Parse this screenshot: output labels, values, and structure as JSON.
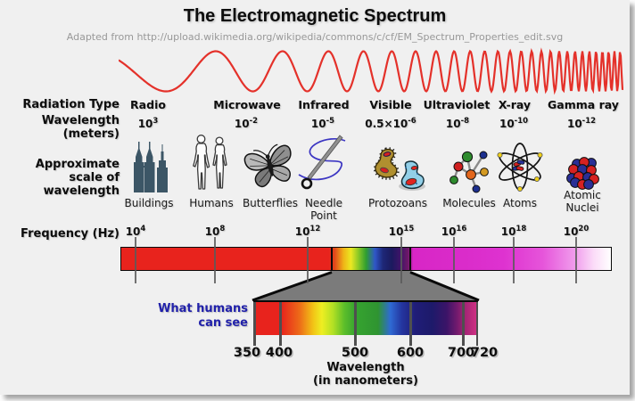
{
  "header": {
    "title": "The Electromagnetic Spectrum",
    "subtitle": "Adapted from http://upload.wikimedia.org/wikipedia/commons/c/cf/EM_Spectrum_Properties_edit.svg"
  },
  "row_labels": {
    "radiation_type": "Radiation Type",
    "wavelength": "Wavelength\n(meters)",
    "scale": "Approximate\nscale of\nwavelength",
    "frequency": "Frequency (Hz)"
  },
  "radiation_types": [
    {
      "label": "Radio"
    },
    {
      "label": "Microwave"
    },
    {
      "label": "Infrared"
    },
    {
      "label": "Visible"
    },
    {
      "label": "Ultraviolet"
    },
    {
      "label": "X-ray"
    },
    {
      "label": "Gamma ray"
    }
  ],
  "wavelengths_m": [
    {
      "mantissa": "10",
      "exp": "3"
    },
    {
      "mantissa": "10",
      "exp": "-2"
    },
    {
      "mantissa": "10",
      "exp": "-5"
    },
    {
      "mantissa": "0.5×10",
      "exp": "-6"
    },
    {
      "mantissa": "10",
      "exp": "-8"
    },
    {
      "mantissa": "10",
      "exp": "-10"
    },
    {
      "mantissa": "10",
      "exp": "-12"
    }
  ],
  "scale_items": [
    {
      "label": "Buildings",
      "icon": "buildings-icon"
    },
    {
      "label": "Humans",
      "icon": "humans-icon"
    },
    {
      "label": "Butterflies",
      "icon": "butterfly-icon"
    },
    {
      "label": "Needle\nPoint",
      "icon": "needle-icon"
    },
    {
      "label": "Protozoans",
      "icon": "protozoans-icon"
    },
    {
      "label": "Molecules",
      "icon": "molecule-icon"
    },
    {
      "label": "Atoms",
      "icon": "atom-icon"
    },
    {
      "label": "Atomic\nNuclei",
      "icon": "atomic-nuclei-icon"
    }
  ],
  "frequency_ticks": [
    {
      "mantissa": "10",
      "exp": "4"
    },
    {
      "mantissa": "10",
      "exp": "8"
    },
    {
      "mantissa": "10",
      "exp": "12"
    },
    {
      "mantissa": "10",
      "exp": "15"
    },
    {
      "mantissa": "10",
      "exp": "16"
    },
    {
      "mantissa": "10",
      "exp": "18"
    },
    {
      "mantissa": "10",
      "exp": "20"
    }
  ],
  "visible_inset": {
    "label": "What humans\ncan see",
    "ticks": [
      "350",
      "400",
      "500",
      "600",
      "700",
      "720"
    ],
    "axis_label": "Wavelength\n(in nanometers)"
  },
  "colors": {
    "background": "#f0f0f0",
    "wave": "#e4312a",
    "inset_label_blue": "#2121aa",
    "subtitle_gray": "#989898",
    "spectrum_red": "#e8231d",
    "spectrum_magenta": "#d826c6",
    "gray_funnel": "#7b7b7b"
  }
}
